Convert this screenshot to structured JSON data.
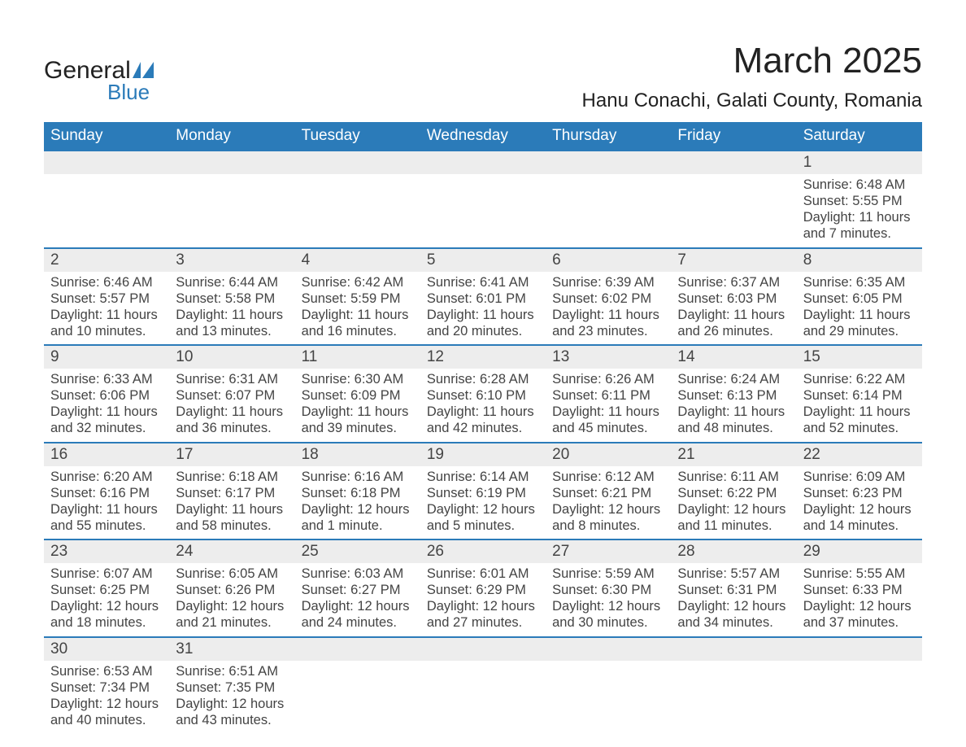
{
  "logo": {
    "text_main": "General",
    "text_sub": "Blue",
    "accent_color": "#2b7bb9"
  },
  "title": "March 2025",
  "location": "Hanu Conachi, Galati County, Romania",
  "colors": {
    "header_bg": "#2b7bb9",
    "header_fg": "#ffffff",
    "row_border": "#2b7bb9",
    "daynum_bg": "#ededed",
    "text": "#3f3f3f",
    "background": "#ffffff"
  },
  "weekdays": [
    "Sunday",
    "Monday",
    "Tuesday",
    "Wednesday",
    "Thursday",
    "Friday",
    "Saturday"
  ],
  "weeks": [
    [
      null,
      null,
      null,
      null,
      null,
      null,
      {
        "n": "1",
        "sr": "6:48 AM",
        "ss": "5:55 PM",
        "dl": "11 hours and 7 minutes."
      }
    ],
    [
      {
        "n": "2",
        "sr": "6:46 AM",
        "ss": "5:57 PM",
        "dl": "11 hours and 10 minutes."
      },
      {
        "n": "3",
        "sr": "6:44 AM",
        "ss": "5:58 PM",
        "dl": "11 hours and 13 minutes."
      },
      {
        "n": "4",
        "sr": "6:42 AM",
        "ss": "5:59 PM",
        "dl": "11 hours and 16 minutes."
      },
      {
        "n": "5",
        "sr": "6:41 AM",
        "ss": "6:01 PM",
        "dl": "11 hours and 20 minutes."
      },
      {
        "n": "6",
        "sr": "6:39 AM",
        "ss": "6:02 PM",
        "dl": "11 hours and 23 minutes."
      },
      {
        "n": "7",
        "sr": "6:37 AM",
        "ss": "6:03 PM",
        "dl": "11 hours and 26 minutes."
      },
      {
        "n": "8",
        "sr": "6:35 AM",
        "ss": "6:05 PM",
        "dl": "11 hours and 29 minutes."
      }
    ],
    [
      {
        "n": "9",
        "sr": "6:33 AM",
        "ss": "6:06 PM",
        "dl": "11 hours and 32 minutes."
      },
      {
        "n": "10",
        "sr": "6:31 AM",
        "ss": "6:07 PM",
        "dl": "11 hours and 36 minutes."
      },
      {
        "n": "11",
        "sr": "6:30 AM",
        "ss": "6:09 PM",
        "dl": "11 hours and 39 minutes."
      },
      {
        "n": "12",
        "sr": "6:28 AM",
        "ss": "6:10 PM",
        "dl": "11 hours and 42 minutes."
      },
      {
        "n": "13",
        "sr": "6:26 AM",
        "ss": "6:11 PM",
        "dl": "11 hours and 45 minutes."
      },
      {
        "n": "14",
        "sr": "6:24 AM",
        "ss": "6:13 PM",
        "dl": "11 hours and 48 minutes."
      },
      {
        "n": "15",
        "sr": "6:22 AM",
        "ss": "6:14 PM",
        "dl": "11 hours and 52 minutes."
      }
    ],
    [
      {
        "n": "16",
        "sr": "6:20 AM",
        "ss": "6:16 PM",
        "dl": "11 hours and 55 minutes."
      },
      {
        "n": "17",
        "sr": "6:18 AM",
        "ss": "6:17 PM",
        "dl": "11 hours and 58 minutes."
      },
      {
        "n": "18",
        "sr": "6:16 AM",
        "ss": "6:18 PM",
        "dl": "12 hours and 1 minute."
      },
      {
        "n": "19",
        "sr": "6:14 AM",
        "ss": "6:19 PM",
        "dl": "12 hours and 5 minutes."
      },
      {
        "n": "20",
        "sr": "6:12 AM",
        "ss": "6:21 PM",
        "dl": "12 hours and 8 minutes."
      },
      {
        "n": "21",
        "sr": "6:11 AM",
        "ss": "6:22 PM",
        "dl": "12 hours and 11 minutes."
      },
      {
        "n": "22",
        "sr": "6:09 AM",
        "ss": "6:23 PM",
        "dl": "12 hours and 14 minutes."
      }
    ],
    [
      {
        "n": "23",
        "sr": "6:07 AM",
        "ss": "6:25 PM",
        "dl": "12 hours and 18 minutes."
      },
      {
        "n": "24",
        "sr": "6:05 AM",
        "ss": "6:26 PM",
        "dl": "12 hours and 21 minutes."
      },
      {
        "n": "25",
        "sr": "6:03 AM",
        "ss": "6:27 PM",
        "dl": "12 hours and 24 minutes."
      },
      {
        "n": "26",
        "sr": "6:01 AM",
        "ss": "6:29 PM",
        "dl": "12 hours and 27 minutes."
      },
      {
        "n": "27",
        "sr": "5:59 AM",
        "ss": "6:30 PM",
        "dl": "12 hours and 30 minutes."
      },
      {
        "n": "28",
        "sr": "5:57 AM",
        "ss": "6:31 PM",
        "dl": "12 hours and 34 minutes."
      },
      {
        "n": "29",
        "sr": "5:55 AM",
        "ss": "6:33 PM",
        "dl": "12 hours and 37 minutes."
      }
    ],
    [
      {
        "n": "30",
        "sr": "6:53 AM",
        "ss": "7:34 PM",
        "dl": "12 hours and 40 minutes."
      },
      {
        "n": "31",
        "sr": "6:51 AM",
        "ss": "7:35 PM",
        "dl": "12 hours and 43 minutes."
      },
      null,
      null,
      null,
      null,
      null
    ]
  ],
  "labels": {
    "sunrise": "Sunrise:",
    "sunset": "Sunset:",
    "daylight": "Daylight:"
  }
}
